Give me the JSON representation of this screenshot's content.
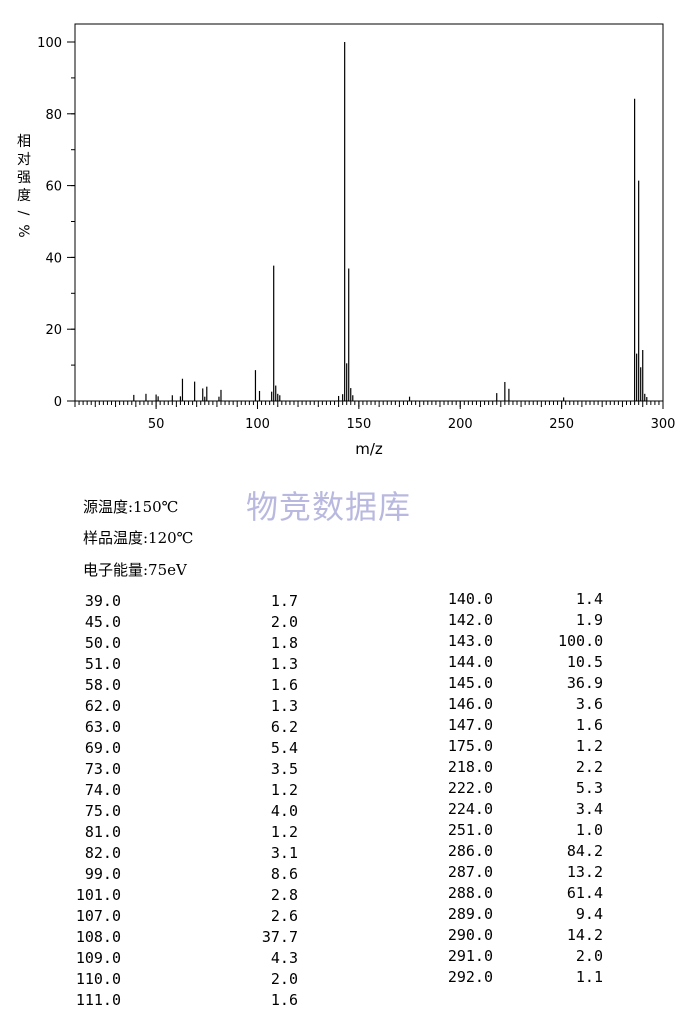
{
  "chart_data": {
    "type": "bar",
    "xlabel": "m/z",
    "ylabel": "相对强度/%",
    "xlim": [
      10,
      300
    ],
    "ylim": [
      0,
      100
    ],
    "x_ticks": [
      50,
      100,
      150,
      200,
      250,
      300
    ],
    "y_ticks": [
      0,
      20,
      40,
      60,
      80,
      100
    ],
    "peaks": [
      {
        "mz": 39.0,
        "intensity": 1.7
      },
      {
        "mz": 45.0,
        "intensity": 2.0
      },
      {
        "mz": 50.0,
        "intensity": 1.8
      },
      {
        "mz": 51.0,
        "intensity": 1.3
      },
      {
        "mz": 58.0,
        "intensity": 1.6
      },
      {
        "mz": 62.0,
        "intensity": 1.3
      },
      {
        "mz": 63.0,
        "intensity": 6.2
      },
      {
        "mz": 69.0,
        "intensity": 5.4
      },
      {
        "mz": 73.0,
        "intensity": 3.5
      },
      {
        "mz": 74.0,
        "intensity": 1.2
      },
      {
        "mz": 75.0,
        "intensity": 4.0
      },
      {
        "mz": 81.0,
        "intensity": 1.2
      },
      {
        "mz": 82.0,
        "intensity": 3.1
      },
      {
        "mz": 99.0,
        "intensity": 8.6
      },
      {
        "mz": 101.0,
        "intensity": 2.8
      },
      {
        "mz": 107.0,
        "intensity": 2.6
      },
      {
        "mz": 108.0,
        "intensity": 37.7
      },
      {
        "mz": 109.0,
        "intensity": 4.3
      },
      {
        "mz": 110.0,
        "intensity": 2.0
      },
      {
        "mz": 111.0,
        "intensity": 1.6
      },
      {
        "mz": 140.0,
        "intensity": 1.4
      },
      {
        "mz": 142.0,
        "intensity": 1.9
      },
      {
        "mz": 143.0,
        "intensity": 100.0
      },
      {
        "mz": 144.0,
        "intensity": 10.5
      },
      {
        "mz": 145.0,
        "intensity": 36.9
      },
      {
        "mz": 146.0,
        "intensity": 3.6
      },
      {
        "mz": 147.0,
        "intensity": 1.6
      },
      {
        "mz": 175.0,
        "intensity": 1.2
      },
      {
        "mz": 218.0,
        "intensity": 2.2
      },
      {
        "mz": 222.0,
        "intensity": 5.3
      },
      {
        "mz": 224.0,
        "intensity": 3.4
      },
      {
        "mz": 251.0,
        "intensity": 1.0
      },
      {
        "mz": 286.0,
        "intensity": 84.2
      },
      {
        "mz": 287.0,
        "intensity": 13.2
      },
      {
        "mz": 288.0,
        "intensity": 61.4
      },
      {
        "mz": 289.0,
        "intensity": 9.4
      },
      {
        "mz": 290.0,
        "intensity": 14.2
      },
      {
        "mz": 291.0,
        "intensity": 2.0
      },
      {
        "mz": 292.0,
        "intensity": 1.1
      }
    ]
  },
  "conditions": {
    "source_temp": "源温度:150℃",
    "sample_temp": "样品温度:120℃",
    "electron_energy": "电子能量:75eV"
  },
  "watermark": "物竞数据库",
  "table_left": [
    [
      "39.0",
      "1.7"
    ],
    [
      "45.0",
      "2.0"
    ],
    [
      "50.0",
      "1.8"
    ],
    [
      "51.0",
      "1.3"
    ],
    [
      "58.0",
      "1.6"
    ],
    [
      "62.0",
      "1.3"
    ],
    [
      "63.0",
      "6.2"
    ],
    [
      "69.0",
      "5.4"
    ],
    [
      "73.0",
      "3.5"
    ],
    [
      "74.0",
      "1.2"
    ],
    [
      "75.0",
      "4.0"
    ],
    [
      "81.0",
      "1.2"
    ],
    [
      "82.0",
      "3.1"
    ],
    [
      "99.0",
      "8.6"
    ],
    [
      "101.0",
      "2.8"
    ],
    [
      "107.0",
      "2.6"
    ],
    [
      "108.0",
      "37.7"
    ],
    [
      "109.0",
      "4.3"
    ],
    [
      "110.0",
      "2.0"
    ],
    [
      "111.0",
      "1.6"
    ]
  ],
  "table_right": [
    [
      "140.0",
      "1.4"
    ],
    [
      "142.0",
      "1.9"
    ],
    [
      "143.0",
      "100.0"
    ],
    [
      "144.0",
      "10.5"
    ],
    [
      "145.0",
      "36.9"
    ],
    [
      "146.0",
      "3.6"
    ],
    [
      "147.0",
      "1.6"
    ],
    [
      "175.0",
      "1.2"
    ],
    [
      "218.0",
      "2.2"
    ],
    [
      "222.0",
      "5.3"
    ],
    [
      "224.0",
      "3.4"
    ],
    [
      "251.0",
      "1.0"
    ],
    [
      "286.0",
      "84.2"
    ],
    [
      "287.0",
      "13.2"
    ],
    [
      "288.0",
      "61.4"
    ],
    [
      "289.0",
      "9.4"
    ],
    [
      "290.0",
      "14.2"
    ],
    [
      "291.0",
      "2.0"
    ],
    [
      "292.0",
      "1.1"
    ]
  ]
}
